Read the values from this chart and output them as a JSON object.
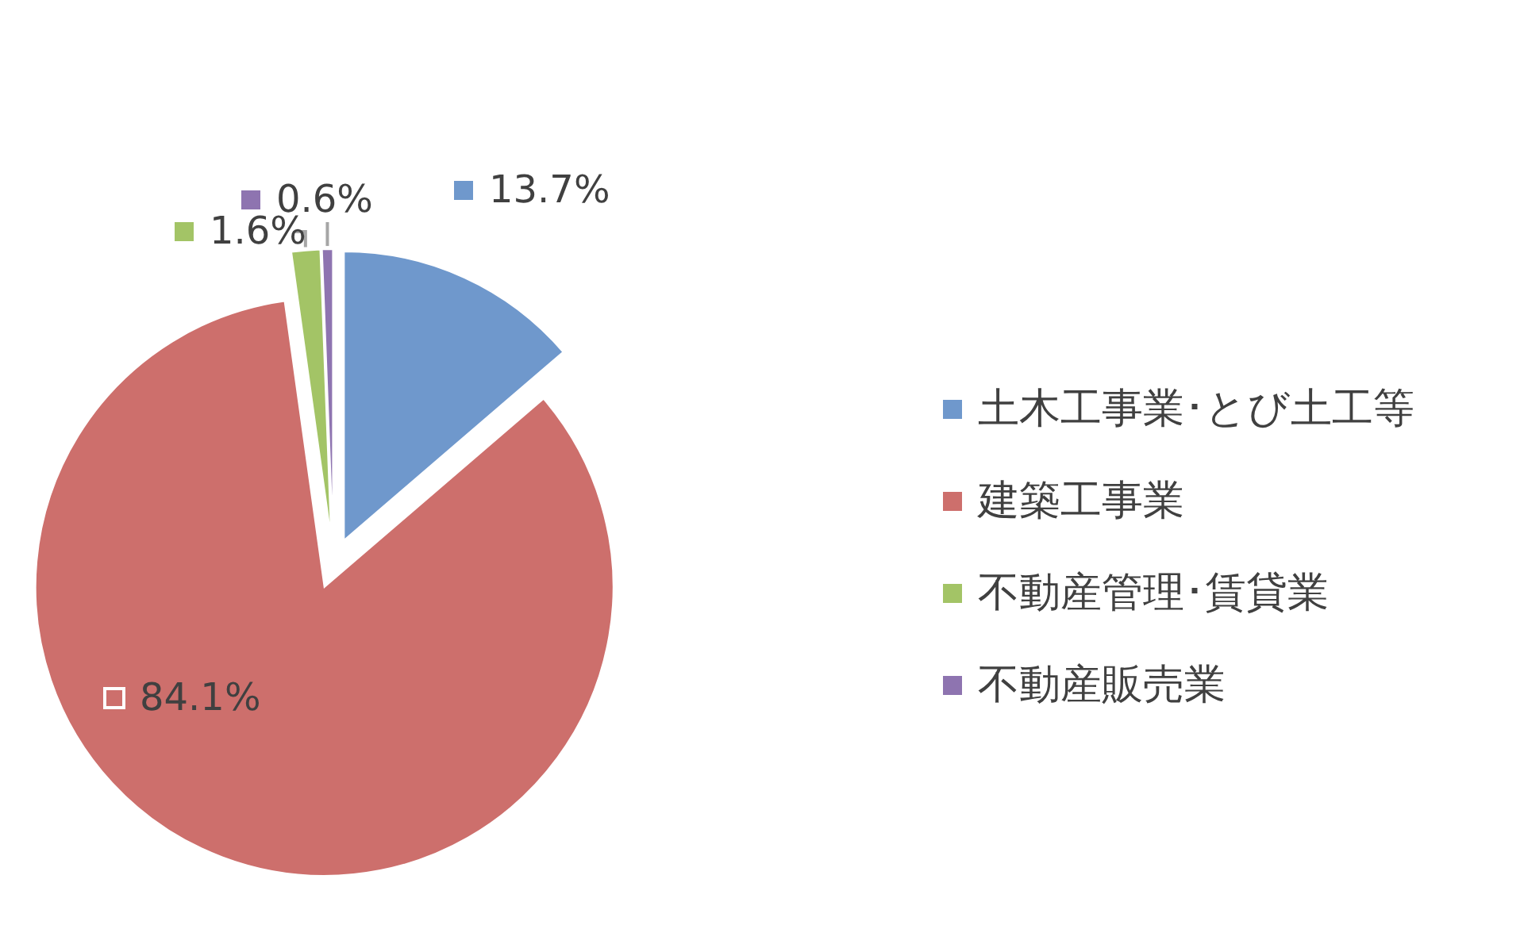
{
  "chart_data": {
    "type": "pie",
    "categories": [
      "土木工事業･とび土工等",
      "建築工事業",
      "不動産管理･賃貸業",
      "不動産販売業"
    ],
    "values": [
      13.7,
      84.1,
      1.6,
      0.6
    ],
    "colors": [
      "#6f98cc",
      "#cd6f6c",
      "#a3c466",
      "#8e74b0"
    ],
    "value_labels": [
      "13.7%",
      "84.1%",
      "1.6%",
      "0.6%"
    ],
    "legend": "right"
  }
}
